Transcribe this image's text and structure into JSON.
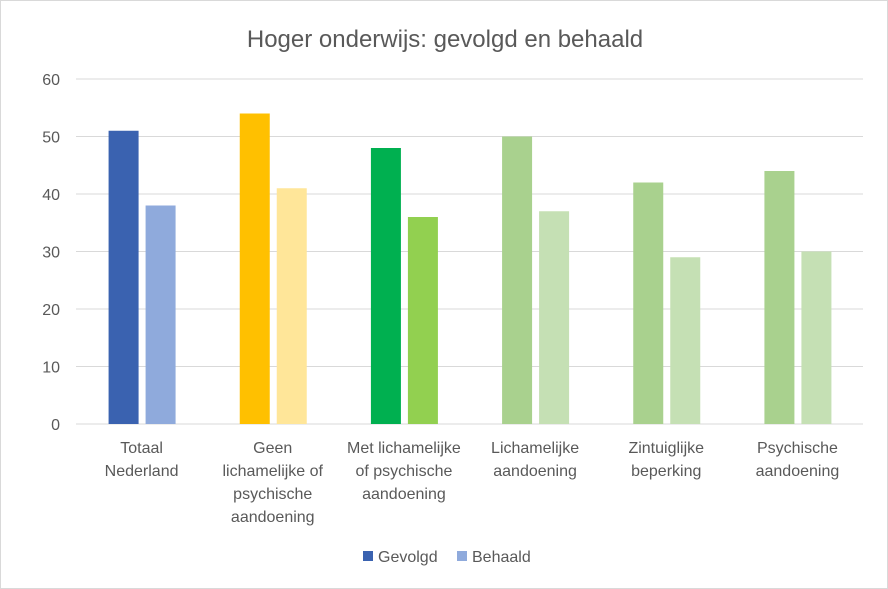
{
  "chart_data": {
    "type": "bar",
    "title": "Hoger onderwijs: gevolgd en behaald",
    "xlabel": "",
    "ylabel": "",
    "ylim": [
      0,
      60
    ],
    "yticks": [
      0,
      10,
      20,
      30,
      40,
      50,
      60
    ],
    "grid": true,
    "legend_position": "bottom",
    "categories": [
      "Totaal Nederland",
      "Geen lichamelijke of psychische aandoening",
      "Met lichamelijke of psychische aandoening",
      "Lichamelijke aandoening",
      "Zintuiglijke beperking",
      "Psychische aandoening"
    ],
    "category_label_lines": [
      [
        "Totaal",
        "Nederland"
      ],
      [
        "Geen",
        "lichamelijke of",
        "psychische",
        "aandoening"
      ],
      [
        "Met lichamelijke",
        "of psychische",
        "aandoening"
      ],
      [
        "Lichamelijke",
        "aandoening"
      ],
      [
        "Zintuiglijke",
        "beperking"
      ],
      [
        "Psychische",
        "aandoening"
      ]
    ],
    "series": [
      {
        "name": "Gevolgd",
        "values": [
          51,
          54,
          48,
          50,
          42,
          44
        ],
        "legend_color": "#3a62b0",
        "colors": [
          "#3a62b0",
          "#ffc000",
          "#00b050",
          "#a9d18e",
          "#a9d18e",
          "#a9d18e"
        ]
      },
      {
        "name": "Behaald",
        "values": [
          38,
          41,
          36,
          37,
          29,
          30
        ],
        "legend_color": "#8faadc",
        "colors": [
          "#8faadc",
          "#ffe699",
          "#92d050",
          "#c5e0b4",
          "#c5e0b4",
          "#c5e0b4"
        ]
      }
    ]
  }
}
